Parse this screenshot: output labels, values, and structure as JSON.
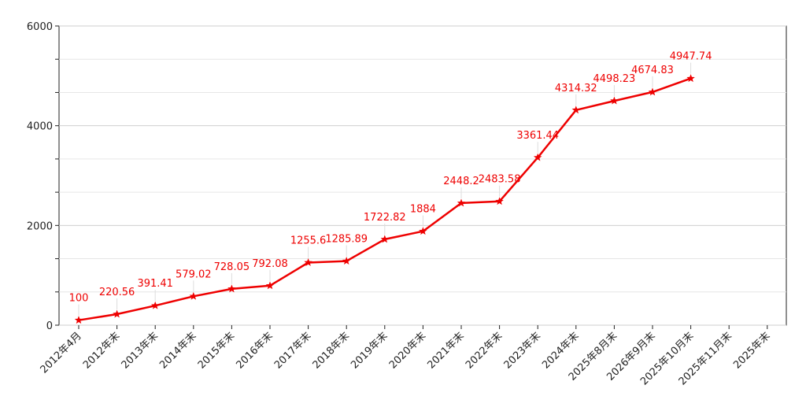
{
  "chart_data": {
    "type": "line",
    "title": "",
    "xlabel": "",
    "ylabel": "",
    "ylim": [
      0,
      6000
    ],
    "yticks": [
      0,
      2000,
      4000,
      6000
    ],
    "grid": true,
    "legend": "none",
    "line_color": "#ee0000",
    "label_color": "#ee0000",
    "marker": "star-icon",
    "categories": [
      "2012年4月",
      "2012年末",
      "2013年末",
      "2014年末",
      "2015年末",
      "2016年末",
      "2017年末",
      "2018年末",
      "2019年末",
      "2020年末",
      "2021年末",
      "2022年末",
      "2023年末",
      "2024年末",
      "2025年8月末",
      "2026年9月末",
      "2025年10月末",
      "2025年11月末",
      "2025年末"
    ],
    "values": [
      100,
      220.56,
      391.41,
      579.02,
      728.05,
      792.08,
      1255.6,
      1285.89,
      1722.82,
      1884,
      2448.2,
      2483.58,
      3361.44,
      4314.32,
      4498.23,
      4674.83,
      4947.74,
      null,
      null
    ],
    "value_labels": [
      "100",
      "220.56",
      "391.41",
      "579.02",
      "728.05",
      "792.08",
      "1255.6",
      "1285.89",
      "1722.82",
      "1884",
      "2448.2",
      "2483.58",
      "3361.44",
      "4314.32",
      "4498.23",
      "4674.83",
      "4947.74",
      "",
      ""
    ]
  }
}
